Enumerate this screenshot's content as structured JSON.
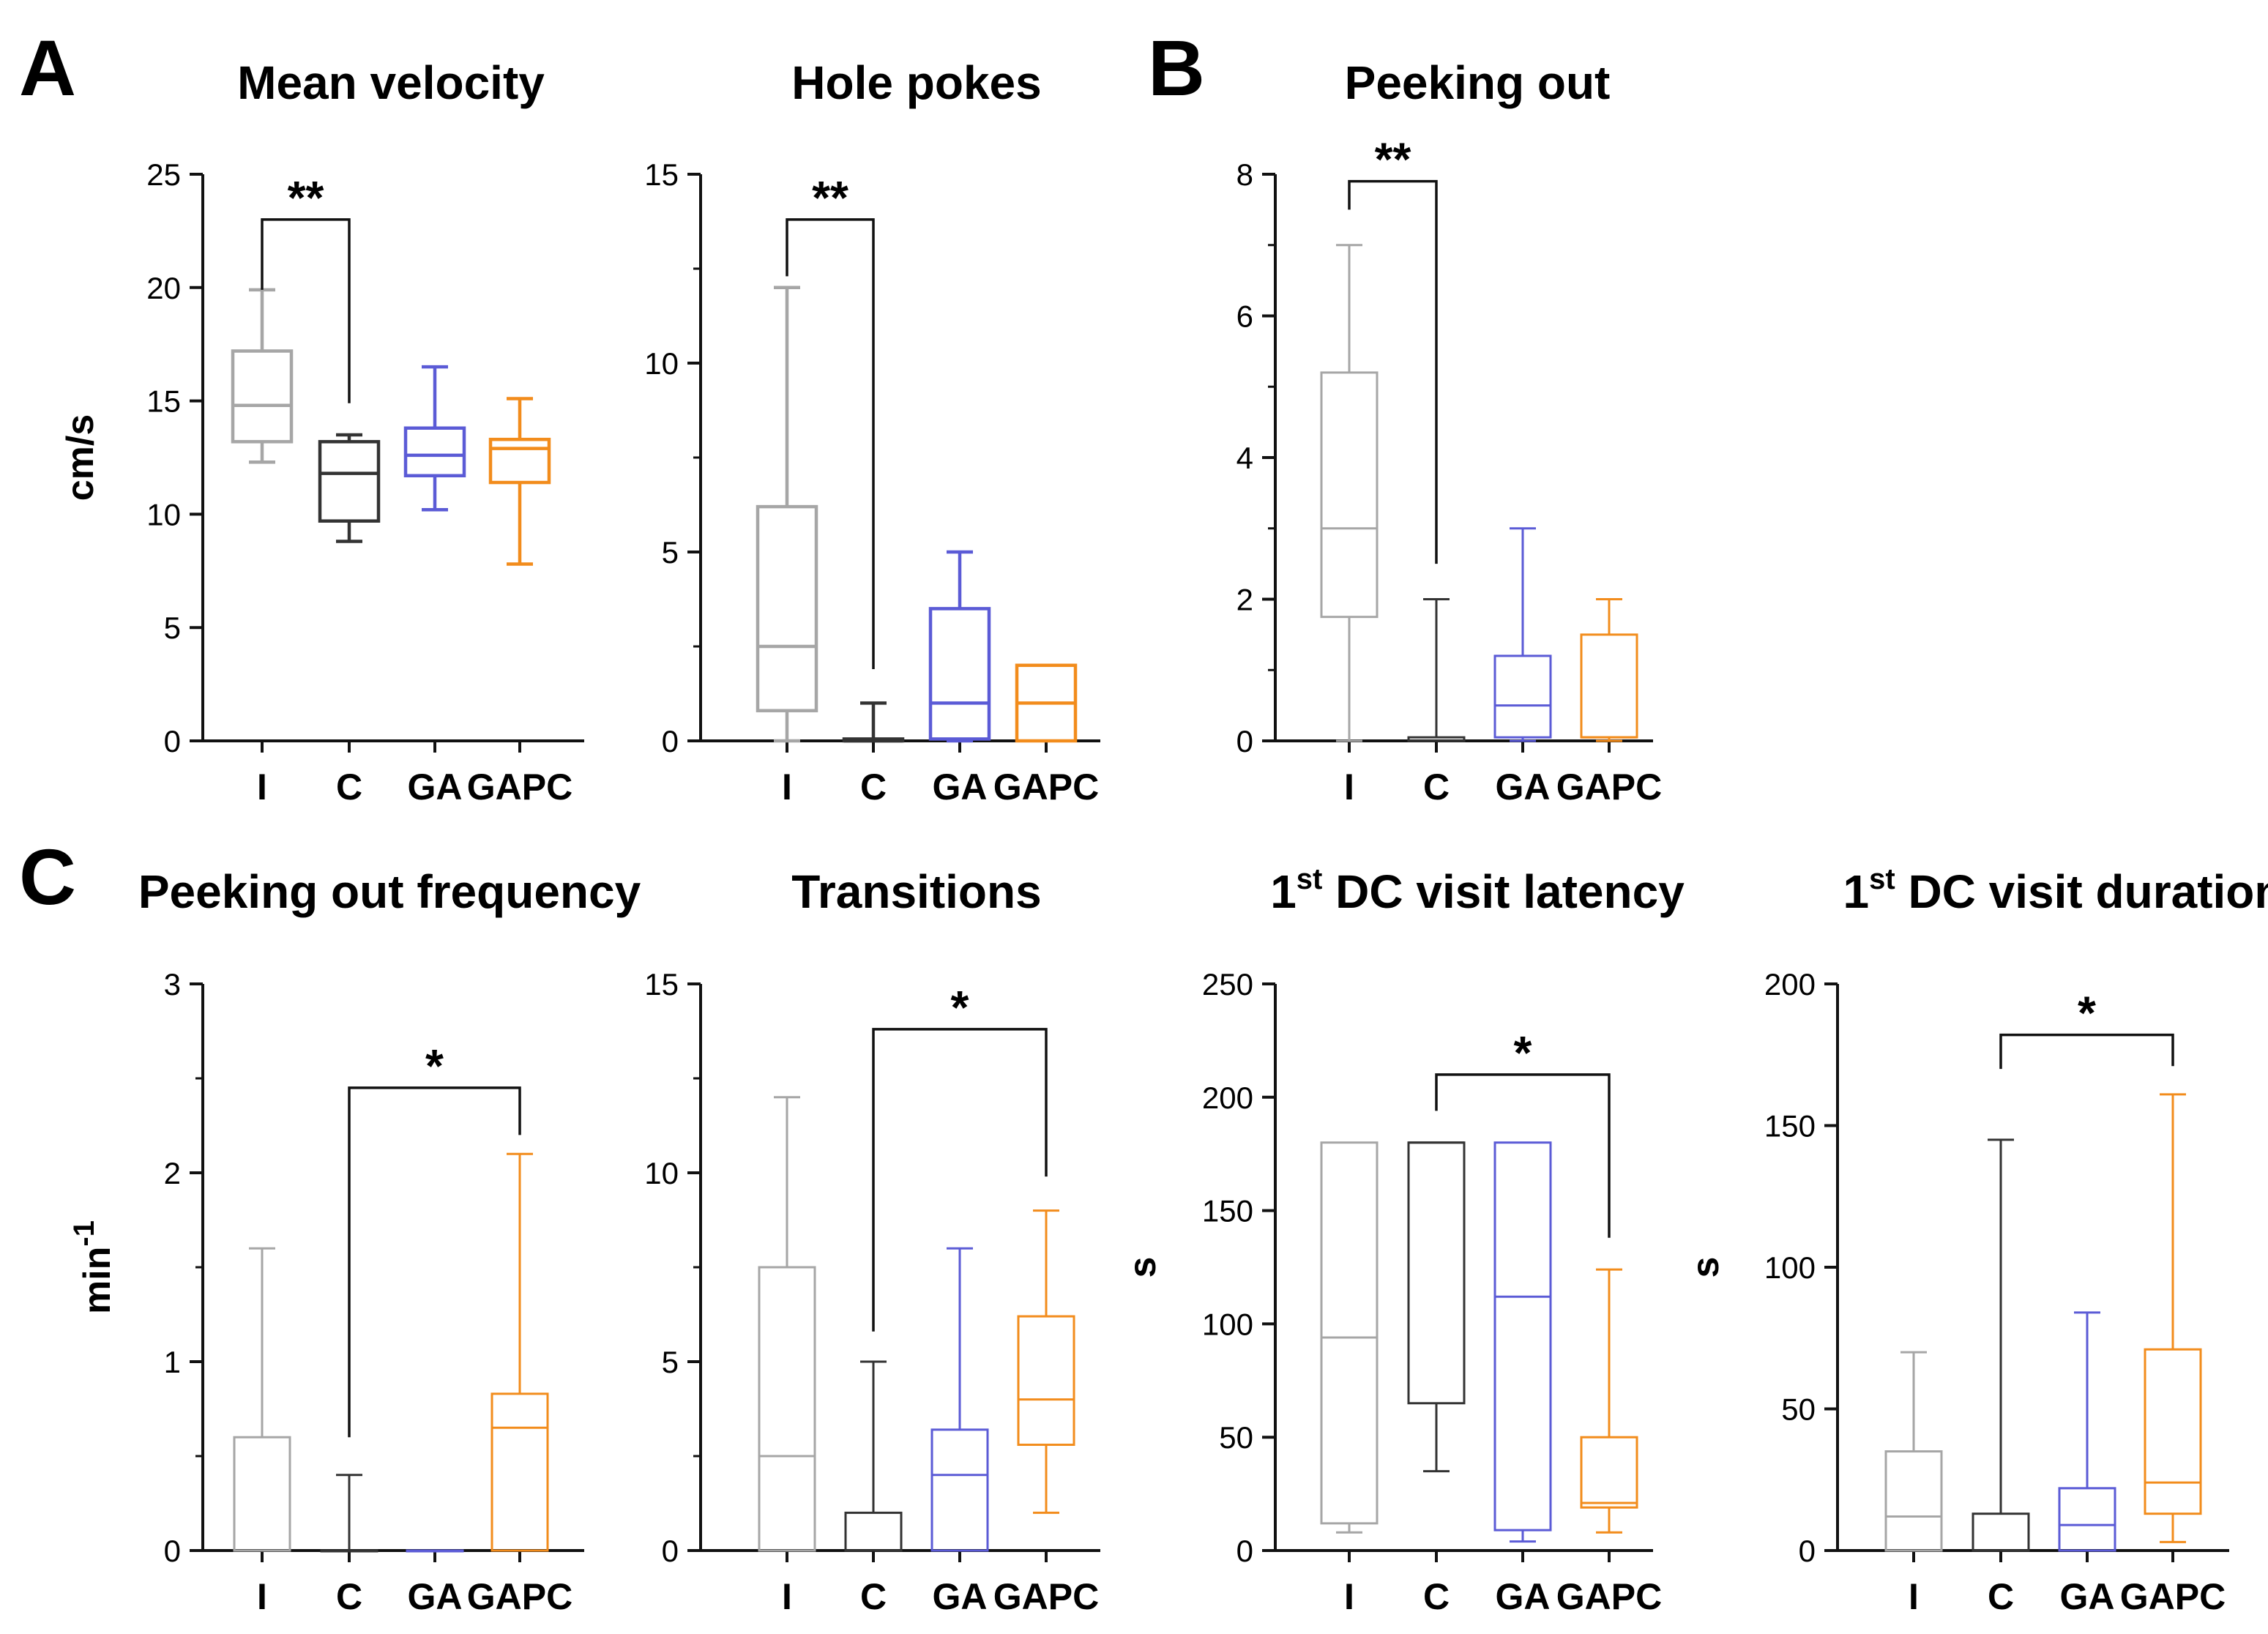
{
  "panel_labels": [
    "A",
    "B",
    "C"
  ],
  "chart_data": [
    {
      "type": "box",
      "title": "Mean velocity",
      "ylabel": "cm/s",
      "ylim": [
        0,
        25
      ],
      "yticks": [
        0,
        5,
        10,
        15,
        20,
        25
      ],
      "yticks_labels": [
        "0",
        "5",
        "10",
        "15",
        "20",
        "25"
      ],
      "minor_ticks": [],
      "categories": [
        "I",
        "C",
        "GA",
        "GAPC"
      ],
      "colors": [
        "#a6a6a6",
        "#333333",
        "#5b5bd6",
        "#f28c1c"
      ],
      "box_style": "thick",
      "boxes": [
        {
          "min": 12.3,
          "q1": 13.2,
          "median": 14.8,
          "q3": 17.2,
          "max": 19.9
        },
        {
          "min": 8.8,
          "q1": 9.7,
          "median": 11.8,
          "q3": 13.2,
          "max": 13.5
        },
        {
          "min": 10.2,
          "q1": 11.7,
          "median": 12.6,
          "q3": 13.8,
          "max": 16.5
        },
        {
          "min": 7.8,
          "q1": 11.4,
          "median": 12.9,
          "q3": 13.3,
          "max": 15.1
        }
      ],
      "significance": [
        {
          "from": 0,
          "to": 1,
          "label": "**",
          "y": 23.0,
          "from_end": 19.9,
          "to_end": 14.9
        }
      ]
    },
    {
      "type": "box",
      "title": "Hole pokes",
      "ylabel": "",
      "ylim": [
        0,
        15
      ],
      "yticks": [
        0,
        5,
        10,
        15
      ],
      "yticks_labels": [
        "0",
        "5",
        "10",
        "15"
      ],
      "minor_ticks": [
        2.5,
        7.5,
        12.5
      ],
      "categories": [
        "I",
        "C",
        "GA",
        "GAPC"
      ],
      "colors": [
        "#a6a6a6",
        "#333333",
        "#5b5bd6",
        "#f28c1c"
      ],
      "box_style": "thick",
      "boxes": [
        {
          "min": 0,
          "q1": 0.8,
          "median": 2.5,
          "q3": 6.2,
          "max": 12.0
        },
        {
          "min": 0,
          "q1": 0,
          "median": 0,
          "q3": 0.05,
          "max": 1.0
        },
        {
          "min": 0,
          "q1": 0.05,
          "median": 1.0,
          "q3": 3.5,
          "max": 5.0
        },
        {
          "min": 0,
          "q1": 0,
          "median": 1.0,
          "q3": 2.0,
          "max": 2.0
        }
      ],
      "significance": [
        {
          "from": 0,
          "to": 1,
          "label": "**",
          "y": 13.8,
          "from_end": 12.3,
          "to_end": 1.9
        }
      ]
    },
    {
      "type": "box",
      "title": "Peeking out",
      "ylabel": "",
      "ylim": [
        0,
        8
      ],
      "yticks": [
        0,
        2,
        4,
        6,
        8
      ],
      "yticks_labels": [
        "0",
        "2",
        "4",
        "6",
        "8"
      ],
      "minor_ticks": [
        1,
        3,
        5,
        7
      ],
      "categories": [
        "I",
        "C",
        "GA",
        "GAPC"
      ],
      "colors": [
        "#a6a6a6",
        "#333333",
        "#5b5bd6",
        "#f28c1c"
      ],
      "box_style": "thin",
      "boxes": [
        {
          "min": 0,
          "q1": 1.75,
          "median": 3.0,
          "q3": 5.2,
          "max": 7.0
        },
        {
          "min": 0,
          "q1": 0,
          "median": 0,
          "q3": 0.05,
          "max": 2.0
        },
        {
          "min": 0,
          "q1": 0.05,
          "median": 0.5,
          "q3": 1.2,
          "max": 3.0
        },
        {
          "min": 0,
          "q1": 0.05,
          "median": 0.05,
          "q3": 1.5,
          "max": 2.0
        }
      ],
      "significance": [
        {
          "from": 0,
          "to": 1,
          "label": "**",
          "y": 7.9,
          "from_end": 7.5,
          "to_end": 2.5
        }
      ]
    },
    {
      "type": "box",
      "title": "Peeking out frequency",
      "ylabel": "min",
      "ylabel_sup": "-1",
      "ylim": [
        0,
        3
      ],
      "yticks": [
        0,
        1,
        2,
        3
      ],
      "yticks_labels": [
        "0",
        "1",
        "2",
        "3"
      ],
      "minor_ticks": [
        0.5,
        1.5,
        2.5
      ],
      "categories": [
        "I",
        "C",
        "GA",
        "GAPC"
      ],
      "colors": [
        "#a6a6a6",
        "#333333",
        "#5b5bd6",
        "#f28c1c"
      ],
      "box_style": "thin",
      "boxes": [
        {
          "min": 0,
          "q1": 0,
          "median": 0,
          "q3": 0.6,
          "max": 1.6
        },
        {
          "min": 0,
          "q1": 0,
          "median": 0,
          "q3": 0,
          "max": 0.4
        },
        {
          "min": 0,
          "q1": 0,
          "median": 0,
          "q3": 0,
          "max": 0
        },
        {
          "min": 0,
          "q1": 0,
          "median": 0.65,
          "q3": 0.83,
          "max": 2.1
        }
      ],
      "significance": [
        {
          "from": 1,
          "to": 3,
          "label": "*",
          "y": 2.45,
          "from_end": 0.6,
          "to_end": 2.2
        }
      ]
    },
    {
      "type": "box",
      "title": "Transitions",
      "ylabel": "",
      "ylim": [
        0,
        15
      ],
      "yticks": [
        0,
        5,
        10,
        15
      ],
      "yticks_labels": [
        "0",
        "5",
        "10",
        "15"
      ],
      "minor_ticks": [
        2.5,
        7.5,
        12.5
      ],
      "categories": [
        "I",
        "C",
        "GA",
        "GAPC"
      ],
      "colors": [
        "#a6a6a6",
        "#333333",
        "#5b5bd6",
        "#f28c1c"
      ],
      "box_style": "thin",
      "boxes": [
        {
          "min": 0,
          "q1": 0,
          "median": 2.5,
          "q3": 7.5,
          "max": 12.0
        },
        {
          "min": 0,
          "q1": 0,
          "median": 0,
          "q3": 1.0,
          "max": 5.0
        },
        {
          "min": 0,
          "q1": 0,
          "median": 2.0,
          "q3": 3.2,
          "max": 8.0
        },
        {
          "min": 1.0,
          "q1": 2.8,
          "median": 4.0,
          "q3": 6.2,
          "max": 9.0
        }
      ],
      "significance": [
        {
          "from": 1,
          "to": 3,
          "label": "*",
          "y": 13.8,
          "from_end": 5.8,
          "to_end": 9.9
        }
      ]
    },
    {
      "type": "box",
      "title": "DC visit latency",
      "title_prefix": "1",
      "title_sup": "st",
      "ylabel": "s",
      "ylim": [
        0,
        250
      ],
      "yticks": [
        0,
        50,
        100,
        150,
        200,
        250
      ],
      "yticks_labels": [
        "0",
        "50",
        "100",
        "150",
        "200",
        "250"
      ],
      "minor_ticks": [],
      "categories": [
        "I",
        "C",
        "GA",
        "GAPC"
      ],
      "colors": [
        "#a6a6a6",
        "#333333",
        "#5b5bd6",
        "#f28c1c"
      ],
      "box_style": "thin",
      "boxes": [
        {
          "min": 8,
          "q1": 12,
          "median": 94,
          "q3": 180,
          "max": 180
        },
        {
          "min": 35,
          "q1": 65,
          "median": 180,
          "q3": 180,
          "max": 180
        },
        {
          "min": 4,
          "q1": 9,
          "median": 112,
          "q3": 180,
          "max": 180
        },
        {
          "min": 8,
          "q1": 19,
          "median": 21,
          "q3": 50,
          "max": 124
        }
      ],
      "significance": [
        {
          "from": 1,
          "to": 3,
          "label": "*",
          "y": 210,
          "from_end": 194,
          "to_end": 138
        }
      ]
    },
    {
      "type": "box",
      "title": "DC visit duration",
      "title_prefix": "1",
      "title_sup": "st",
      "ylabel": "s",
      "ylim": [
        0,
        200
      ],
      "yticks": [
        0,
        50,
        100,
        150,
        200
      ],
      "yticks_labels": [
        "0",
        "50",
        "100",
        "150",
        "200"
      ],
      "minor_ticks": [],
      "categories": [
        "I",
        "C",
        "GA",
        "GAPC"
      ],
      "colors": [
        "#a6a6a6",
        "#333333",
        "#5b5bd6",
        "#f28c1c"
      ],
      "box_style": "thin",
      "boxes": [
        {
          "min": 0,
          "q1": 0,
          "median": 12,
          "q3": 35,
          "max": 70
        },
        {
          "min": 0,
          "q1": 0,
          "median": 0,
          "q3": 13,
          "max": 145
        },
        {
          "min": 0,
          "q1": 0,
          "median": 9,
          "q3": 22,
          "max": 84
        },
        {
          "min": 3,
          "q1": 13,
          "median": 24,
          "q3": 71,
          "max": 161
        }
      ],
      "significance": [
        {
          "from": 1,
          "to": 3,
          "label": "*",
          "y": 182,
          "from_end": 170,
          "to_end": 171
        }
      ]
    }
  ]
}
